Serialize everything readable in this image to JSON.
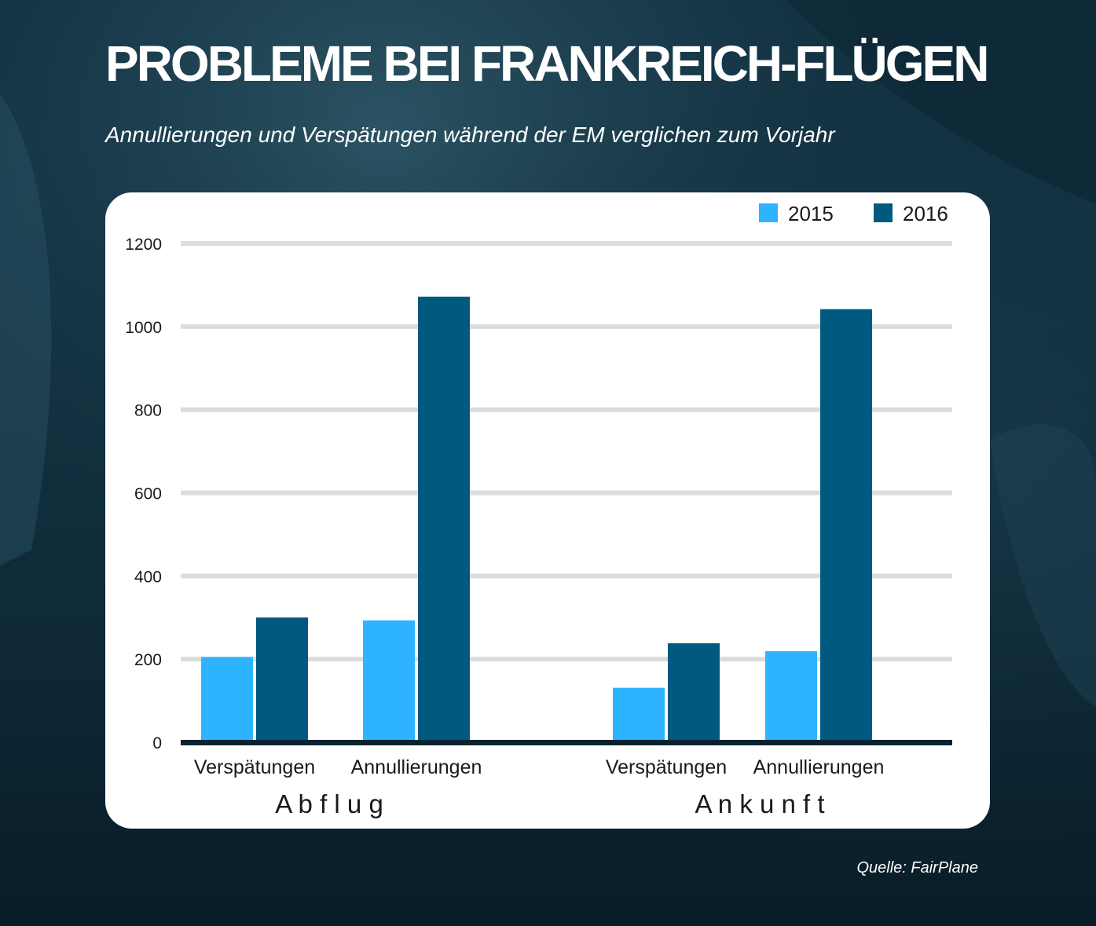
{
  "title": "PROBLEME BEI FRANKREICH-FLÜGEN",
  "subtitle": "Annullierungen und Verspätungen während der EM verglichen zum Vorjahr",
  "source": "Quelle: FairPlane",
  "colors": {
    "series_2015": "#2db3ff",
    "series_2016": "#005a80",
    "grid": "#dcdcdc",
    "baseline": "#0a2230",
    "text": "#1a1a1a",
    "card": "#ffffff"
  },
  "chart_data": {
    "type": "bar",
    "legend_position": "top-right",
    "grid": true,
    "ylim": [
      0,
      1200
    ],
    "yticks": [
      0,
      200,
      400,
      600,
      800,
      1000,
      1200
    ],
    "groups": [
      {
        "label": "A b f l u g",
        "categories": [
          "Verspätungen",
          "Annullierungen"
        ]
      },
      {
        "label": "A n k u n f t",
        "categories": [
          "Verspätungen",
          "Annullierungen"
        ]
      }
    ],
    "series": [
      {
        "name": "2015",
        "values": [
          205,
          293,
          131,
          219
        ]
      },
      {
        "name": "2016",
        "values": [
          300,
          1072,
          238,
          1042
        ]
      }
    ]
  }
}
